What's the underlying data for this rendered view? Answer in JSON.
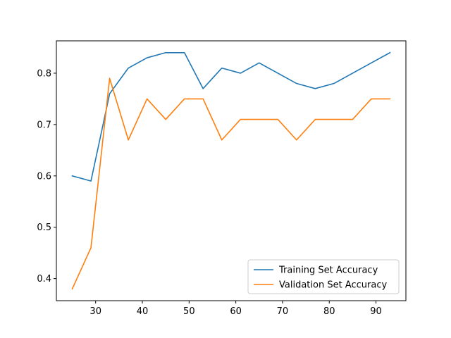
{
  "chart_data": {
    "type": "line",
    "title": "",
    "xlabel": "",
    "ylabel": "",
    "xlim": [
      21.6,
      96.4
    ],
    "ylim": [
      0.357,
      0.863
    ],
    "xticks": [
      30,
      40,
      50,
      60,
      70,
      80,
      90
    ],
    "yticks": [
      0.4,
      0.5,
      0.6,
      0.7,
      0.8
    ],
    "grid": false,
    "legend_position": "lower-right",
    "x": [
      25,
      29,
      33,
      37,
      41,
      45,
      49,
      53,
      57,
      61,
      65,
      69,
      73,
      77,
      81,
      85,
      89,
      93
    ],
    "series": [
      {
        "name": "Training Set Accuracy",
        "color": "#1f77b4",
        "values": [
          0.6,
          0.59,
          0.76,
          0.81,
          0.83,
          0.84,
          0.84,
          0.77,
          0.81,
          0.8,
          0.82,
          0.8,
          0.78,
          0.77,
          0.78,
          0.8,
          0.82,
          0.84
        ]
      },
      {
        "name": "Validation Set Accuracy",
        "color": "#ff7f0e",
        "values": [
          0.38,
          0.46,
          0.79,
          0.67,
          0.75,
          0.71,
          0.75,
          0.75,
          0.67,
          0.71,
          0.71,
          0.71,
          0.67,
          0.71,
          0.71,
          0.71,
          0.75,
          0.75
        ]
      }
    ]
  }
}
